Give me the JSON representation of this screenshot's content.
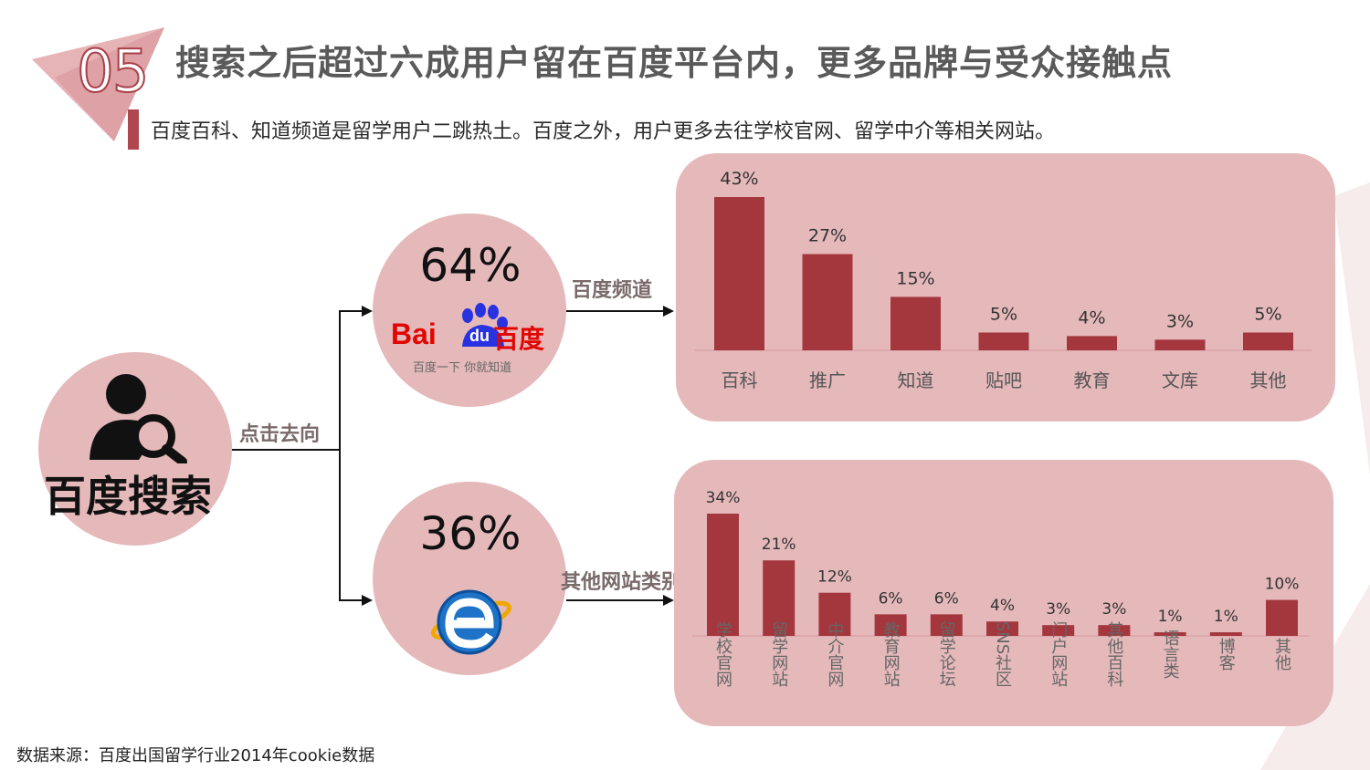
{
  "header": {
    "section_number": "05",
    "title": "搜索之后超过六成用户留在百度平台内，更多品牌与受众接触点",
    "subtitle": "百度百科、知道频道是留学用户二跳热土。百度之外，用户更多去往学校官网、留学中介等相关网站。"
  },
  "flow": {
    "source_label": "百度搜索",
    "click_label": "点击去向",
    "baidu_pct": "64%",
    "baidu_channel_label": "百度频道",
    "other_pct": "36%",
    "other_label": "其他网站类别",
    "baidu_logo_text": "Bai",
    "baidu_logo_du": "du",
    "baidu_logo_cn": "百度",
    "baidu_slogan": "百度一下 你就知道"
  },
  "source_note": "数据来源：百度出国留学行业2014年cookie数据",
  "colors": {
    "bar": "#a4373d",
    "panel": "#e5b8ba",
    "circle": "#e5b8ba",
    "accent": "#b0464f"
  },
  "chart_data": [
    {
      "type": "bar",
      "title": "",
      "categories": [
        "百科",
        "推广",
        "知道",
        "贴吧",
        "教育",
        "文库",
        "其他"
      ],
      "values": [
        43,
        27,
        15,
        5,
        4,
        3,
        5
      ],
      "labels": [
        "43%",
        "27%",
        "15%",
        "5%",
        "4%",
        "3%",
        "5%"
      ],
      "ylim": [
        0,
        43
      ],
      "grid": false
    },
    {
      "type": "bar",
      "title": "",
      "categories": [
        "学校官网",
        "留学网站",
        "中介官网",
        "教育网站",
        "留学论坛",
        "SNS社区",
        "门户网站",
        "其他百科",
        "语言类",
        "博客",
        "其他"
      ],
      "values": [
        34,
        21,
        12,
        6,
        6,
        4,
        3,
        3,
        1,
        1,
        10
      ],
      "labels": [
        "34%",
        "21%",
        "12%",
        "6%",
        "6%",
        "4%",
        "3%",
        "3%",
        "1%",
        "1%",
        "10%"
      ],
      "ylim": [
        0,
        34
      ],
      "grid": false
    }
  ]
}
